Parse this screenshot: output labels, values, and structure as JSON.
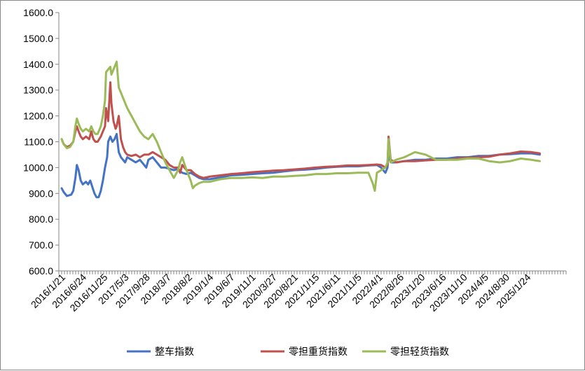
{
  "chart_data": {
    "type": "line",
    "title": "",
    "xlabel": "",
    "ylabel": "",
    "ylim": [
      600,
      1600
    ],
    "y_ticks": [
      "600.0",
      "700.0",
      "800.0",
      "900.0",
      "1000.0",
      "1100.0",
      "1200.0",
      "1300.0",
      "1400.0",
      "1500.0",
      "1600.0"
    ],
    "x_ticks": [
      "2016/1/21",
      "2016/6/24",
      "2016/11/25",
      "2017/5/3",
      "2017/9/28",
      "2018/3/7",
      "2018/8/2",
      "2019/1/4",
      "2019/6/7",
      "2019/11/1",
      "2020/3/27",
      "2020/8/21",
      "2021/1/15",
      "2021/6/11",
      "2021/11/5",
      "2022/4/1",
      "2022/8/26",
      "2023/1/20",
      "2023/6/16",
      "2023/11/10",
      "2024/4/5",
      "2024/8/30",
      "2025/1/24"
    ],
    "x_index_range": [
      0,
      22.6
    ],
    "grid": false,
    "legend_position": "bottom",
    "series": [
      {
        "name": "整车指数",
        "color": "#4472C4",
        "points": [
          [
            0,
            920
          ],
          [
            0.1,
            905
          ],
          [
            0.25,
            890
          ],
          [
            0.45,
            895
          ],
          [
            0.55,
            910
          ],
          [
            0.65,
            960
          ],
          [
            0.72,
            1010
          ],
          [
            0.8,
            990
          ],
          [
            0.9,
            950
          ],
          [
            1.0,
            935
          ],
          [
            1.15,
            945
          ],
          [
            1.25,
            935
          ],
          [
            1.35,
            950
          ],
          [
            1.45,
            925
          ],
          [
            1.55,
            900
          ],
          [
            1.65,
            885
          ],
          [
            1.75,
            885
          ],
          [
            1.85,
            910
          ],
          [
            1.95,
            950
          ],
          [
            2.05,
            1000
          ],
          [
            2.15,
            1040
          ],
          [
            2.2,
            1100
          ],
          [
            2.3,
            1120
          ],
          [
            2.4,
            1100
          ],
          [
            2.5,
            1110
          ],
          [
            2.6,
            1130
          ],
          [
            2.7,
            1060
          ],
          [
            2.8,
            1040
          ],
          [
            2.9,
            1030
          ],
          [
            3.0,
            1020
          ],
          [
            3.1,
            1040
          ],
          [
            3.3,
            1030
          ],
          [
            3.5,
            1020
          ],
          [
            3.7,
            1030
          ],
          [
            3.9,
            1010
          ],
          [
            4.0,
            1000
          ],
          [
            4.1,
            1030
          ],
          [
            4.3,
            1040
          ],
          [
            4.5,
            1020
          ],
          [
            4.7,
            1000
          ],
          [
            4.9,
            1000
          ],
          [
            5.1,
            995
          ],
          [
            5.3,
            990
          ],
          [
            5.5,
            995
          ],
          [
            5.7,
            980
          ],
          [
            5.9,
            975
          ],
          [
            6.1,
            980
          ],
          [
            6.3,
            970
          ],
          [
            6.5,
            960
          ],
          [
            6.7,
            955
          ],
          [
            7.0,
            955
          ],
          [
            7.5,
            962
          ],
          [
            8.0,
            970
          ],
          [
            8.5,
            972
          ],
          [
            9.0,
            975
          ],
          [
            9.5,
            978
          ],
          [
            10.0,
            980
          ],
          [
            10.5,
            985
          ],
          [
            11.0,
            990
          ],
          [
            11.5,
            992
          ],
          [
            12.0,
            995
          ],
          [
            12.5,
            1000
          ],
          [
            13.0,
            1003
          ],
          [
            13.5,
            1005
          ],
          [
            14.0,
            1005
          ],
          [
            14.5,
            1008
          ],
          [
            14.9,
            1010
          ],
          [
            15.1,
            1000
          ],
          [
            15.3,
            980
          ],
          [
            15.4,
            1000
          ],
          [
            15.45,
            1060
          ],
          [
            15.55,
            1020
          ],
          [
            15.8,
            1020
          ],
          [
            16.2,
            1025
          ],
          [
            16.7,
            1030
          ],
          [
            17.2,
            1030
          ],
          [
            17.7,
            1035
          ],
          [
            18.2,
            1035
          ],
          [
            18.7,
            1040
          ],
          [
            19.2,
            1040
          ],
          [
            19.7,
            1045
          ],
          [
            20.2,
            1045
          ],
          [
            20.7,
            1050
          ],
          [
            21.2,
            1052
          ],
          [
            21.7,
            1055
          ],
          [
            22.2,
            1055
          ],
          [
            22.6,
            1050
          ]
        ]
      },
      {
        "name": "零担重货指数",
        "color": "#C0504D",
        "points": [
          [
            0,
            1110
          ],
          [
            0.1,
            1090
          ],
          [
            0.25,
            1080
          ],
          [
            0.4,
            1085
          ],
          [
            0.55,
            1100
          ],
          [
            0.65,
            1140
          ],
          [
            0.72,
            1160
          ],
          [
            0.8,
            1140
          ],
          [
            0.9,
            1120
          ],
          [
            1.0,
            1110
          ],
          [
            1.15,
            1120
          ],
          [
            1.3,
            1110
          ],
          [
            1.4,
            1140
          ],
          [
            1.5,
            1110
          ],
          [
            1.6,
            1100
          ],
          [
            1.7,
            1100
          ],
          [
            1.85,
            1120
          ],
          [
            1.95,
            1140
          ],
          [
            2.05,
            1160
          ],
          [
            2.1,
            1230
          ],
          [
            2.2,
            1180
          ],
          [
            2.3,
            1330
          ],
          [
            2.35,
            1250
          ],
          [
            2.45,
            1180
          ],
          [
            2.55,
            1150
          ],
          [
            2.6,
            1160
          ],
          [
            2.7,
            1200
          ],
          [
            2.8,
            1110
          ],
          [
            2.9,
            1080
          ],
          [
            3.0,
            1060
          ],
          [
            3.1,
            1050
          ],
          [
            3.3,
            1045
          ],
          [
            3.5,
            1050
          ],
          [
            3.7,
            1040
          ],
          [
            3.9,
            1050
          ],
          [
            4.1,
            1050
          ],
          [
            4.3,
            1060
          ],
          [
            4.5,
            1050
          ],
          [
            4.7,
            1040
          ],
          [
            4.9,
            1030
          ],
          [
            5.1,
            1010
          ],
          [
            5.3,
            1000
          ],
          [
            5.5,
            1000
          ],
          [
            5.6,
            980
          ],
          [
            5.7,
            1010
          ],
          [
            5.9,
            990
          ],
          [
            6.1,
            990
          ],
          [
            6.3,
            975
          ],
          [
            6.5,
            965
          ],
          [
            6.7,
            960
          ],
          [
            7.0,
            965
          ],
          [
            7.5,
            970
          ],
          [
            8.0,
            975
          ],
          [
            8.5,
            978
          ],
          [
            9.0,
            982
          ],
          [
            9.5,
            985
          ],
          [
            10.0,
            988
          ],
          [
            10.5,
            990
          ],
          [
            11.0,
            993
          ],
          [
            11.5,
            996
          ],
          [
            12.0,
            1000
          ],
          [
            12.5,
            1003
          ],
          [
            13.0,
            1005
          ],
          [
            13.5,
            1008
          ],
          [
            14.0,
            1008
          ],
          [
            14.5,
            1010
          ],
          [
            14.9,
            1012
          ],
          [
            15.1,
            1010
          ],
          [
            15.3,
            1000
          ],
          [
            15.4,
            1010
          ],
          [
            15.45,
            1120
          ],
          [
            15.55,
            1030
          ],
          [
            15.8,
            1020
          ],
          [
            16.2,
            1025
          ],
          [
            16.7,
            1025
          ],
          [
            17.2,
            1028
          ],
          [
            17.7,
            1030
          ],
          [
            18.2,
            1030
          ],
          [
            18.7,
            1035
          ],
          [
            19.2,
            1038
          ],
          [
            19.7,
            1040
          ],
          [
            20.2,
            1042
          ],
          [
            20.7,
            1050
          ],
          [
            21.2,
            1055
          ],
          [
            21.7,
            1062
          ],
          [
            22.2,
            1060
          ],
          [
            22.6,
            1055
          ]
        ]
      },
      {
        "name": "零担轻货指数",
        "color": "#9BBB59",
        "points": [
          [
            0,
            1110
          ],
          [
            0.1,
            1090
          ],
          [
            0.25,
            1075
          ],
          [
            0.4,
            1080
          ],
          [
            0.55,
            1100
          ],
          [
            0.65,
            1160
          ],
          [
            0.72,
            1190
          ],
          [
            0.8,
            1170
          ],
          [
            0.9,
            1150
          ],
          [
            1.0,
            1140
          ],
          [
            1.15,
            1150
          ],
          [
            1.3,
            1140
          ],
          [
            1.4,
            1160
          ],
          [
            1.5,
            1140
          ],
          [
            1.6,
            1130
          ],
          [
            1.7,
            1130
          ],
          [
            1.85,
            1160
          ],
          [
            1.95,
            1200
          ],
          [
            2.05,
            1260
          ],
          [
            2.1,
            1370
          ],
          [
            2.2,
            1380
          ],
          [
            2.3,
            1390
          ],
          [
            2.35,
            1360
          ],
          [
            2.45,
            1380
          ],
          [
            2.55,
            1400
          ],
          [
            2.6,
            1410
          ],
          [
            2.7,
            1310
          ],
          [
            2.8,
            1290
          ],
          [
            2.9,
            1270
          ],
          [
            3.0,
            1250
          ],
          [
            3.1,
            1230
          ],
          [
            3.3,
            1200
          ],
          [
            3.5,
            1170
          ],
          [
            3.7,
            1140
          ],
          [
            3.9,
            1120
          ],
          [
            4.1,
            1110
          ],
          [
            4.3,
            1130
          ],
          [
            4.5,
            1100
          ],
          [
            4.7,
            1060
          ],
          [
            4.9,
            1020
          ],
          [
            5.1,
            990
          ],
          [
            5.3,
            960
          ],
          [
            5.5,
            990
          ],
          [
            5.6,
            1020
          ],
          [
            5.7,
            1040
          ],
          [
            5.9,
            990
          ],
          [
            6.1,
            950
          ],
          [
            6.2,
            920
          ],
          [
            6.3,
            930
          ],
          [
            6.5,
            940
          ],
          [
            6.7,
            945
          ],
          [
            7.0,
            945
          ],
          [
            7.5,
            955
          ],
          [
            8.0,
            960
          ],
          [
            8.5,
            960
          ],
          [
            9.0,
            962
          ],
          [
            9.5,
            960
          ],
          [
            10.0,
            965
          ],
          [
            10.5,
            965
          ],
          [
            11.0,
            968
          ],
          [
            11.5,
            970
          ],
          [
            12.0,
            975
          ],
          [
            12.5,
            975
          ],
          [
            13.0,
            978
          ],
          [
            13.5,
            978
          ],
          [
            14.0,
            980
          ],
          [
            14.5,
            980
          ],
          [
            14.7,
            940
          ],
          [
            14.8,
            910
          ],
          [
            14.9,
            980
          ],
          [
            15.1,
            990
          ],
          [
            15.3,
            1000
          ],
          [
            15.4,
            1020
          ],
          [
            15.45,
            1110
          ],
          [
            15.55,
            1020
          ],
          [
            15.8,
            1030
          ],
          [
            16.2,
            1040
          ],
          [
            16.7,
            1060
          ],
          [
            17.2,
            1050
          ],
          [
            17.7,
            1030
          ],
          [
            18.2,
            1030
          ],
          [
            18.7,
            1030
          ],
          [
            19.2,
            1035
          ],
          [
            19.7,
            1035
          ],
          [
            20.2,
            1025
          ],
          [
            20.7,
            1020
          ],
          [
            21.2,
            1025
          ],
          [
            21.7,
            1035
          ],
          [
            22.2,
            1030
          ],
          [
            22.6,
            1025
          ]
        ]
      }
    ]
  }
}
